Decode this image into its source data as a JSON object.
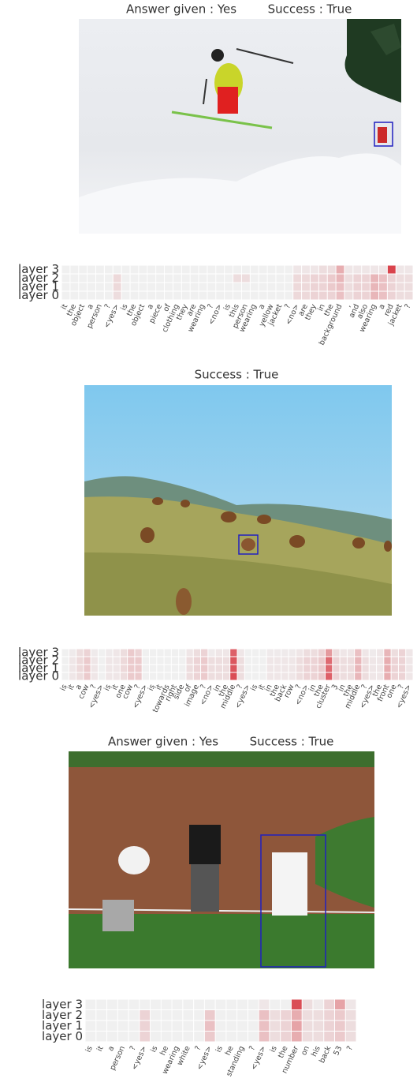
{
  "chart_data": [
    {
      "type": "heatmap",
      "titles": [
        "Answer given : Yes",
        "Success : True"
      ],
      "y_categories": [
        "layer 3",
        "layer 2",
        "layer 1",
        "layer 0"
      ],
      "x_categories": [
        "it",
        "the",
        "object",
        "a",
        "person",
        "?",
        "<yes>",
        "is",
        "the",
        "object",
        "a",
        "piece",
        "of",
        "clothing",
        "they",
        "are",
        "wearing",
        "?",
        "<no>",
        "is",
        "this",
        "person",
        "wearing",
        "a",
        "yellow",
        "jacket",
        "?",
        "<no>",
        "are",
        "they",
        "in",
        "the",
        "background",
        ",",
        "and",
        "also",
        "wearing",
        "a",
        "red",
        "jacket",
        "?"
      ],
      "colors": [
        "#f0f0f0",
        "#d6303a"
      ],
      "values": [
        [
          0,
          0,
          0,
          0,
          0,
          0,
          0,
          0,
          0,
          0,
          0,
          0,
          0,
          0,
          0,
          0,
          0,
          0,
          0,
          0,
          0,
          0,
          0,
          0,
          0,
          0,
          0,
          0.05,
          0.05,
          0.05,
          0.1,
          0.1,
          0.35,
          0.05,
          0.05,
          0.05,
          0.05,
          0.05,
          0.9,
          0.05,
          0.05
        ],
        [
          0,
          0,
          0,
          0,
          0,
          0,
          0.12,
          0,
          0,
          0,
          0,
          0,
          0,
          0,
          0,
          0,
          0,
          0,
          0,
          0,
          0.1,
          0.1,
          0,
          0,
          0,
          0,
          0,
          0.12,
          0.12,
          0.15,
          0.15,
          0.2,
          0.3,
          0.1,
          0.15,
          0.15,
          0.3,
          0.25,
          0.15,
          0.1,
          0.1
        ],
        [
          0,
          0,
          0,
          0,
          0,
          0,
          0.12,
          0,
          0,
          0,
          0,
          0,
          0,
          0,
          0,
          0,
          0,
          0,
          0,
          0,
          0,
          0,
          0,
          0,
          0,
          0,
          0,
          0.12,
          0.12,
          0.15,
          0.15,
          0.2,
          0.25,
          0.1,
          0.15,
          0.15,
          0.3,
          0.25,
          0.15,
          0.1,
          0.1
        ],
        [
          0,
          0,
          0,
          0,
          0,
          0,
          0.1,
          0,
          0,
          0,
          0,
          0,
          0,
          0,
          0,
          0,
          0,
          0,
          0,
          0,
          0,
          0,
          0,
          0,
          0,
          0,
          0,
          0.12,
          0.12,
          0.15,
          0.15,
          0.15,
          0.25,
          0.1,
          0.15,
          0.15,
          0.3,
          0.25,
          0.15,
          0.1,
          0.1
        ]
      ]
    },
    {
      "type": "heatmap",
      "titles": [
        "Success : True"
      ],
      "y_categories": [
        "layer 3",
        "layer 2",
        "layer 1",
        "layer 0"
      ],
      "x_categories": [
        "is",
        "it",
        "a",
        "cow",
        "?",
        "<yes>",
        "is",
        "it",
        "one",
        "cow",
        "?",
        "<yes>",
        "is",
        "it",
        "towards",
        "right",
        "side",
        "of",
        "image",
        "?",
        "<no>",
        "in",
        "the",
        "middle",
        "?",
        "<yes>",
        "is",
        "it",
        "in",
        "the",
        "back",
        "row",
        "?",
        "<no>",
        "in",
        "the",
        "cluster",
        "3",
        "in",
        "the",
        "middle",
        "?",
        "<yes>",
        "the",
        "front",
        "one",
        "?",
        "<yes>"
      ],
      "colors": [
        "#f0f0f0",
        "#d6303a"
      ],
      "values": [
        [
          0,
          0.03,
          0.1,
          0.15,
          0.03,
          0,
          0.03,
          0.05,
          0.1,
          0.2,
          0.15,
          0,
          0,
          0,
          0,
          0,
          0,
          0.05,
          0.1,
          0.15,
          0.03,
          0.05,
          0.05,
          0.75,
          0.05,
          0,
          0,
          0,
          0.03,
          0.03,
          0.03,
          0.03,
          0.05,
          0.1,
          0.1,
          0.15,
          0.45,
          0.1,
          0.05,
          0.05,
          0.25,
          0.05,
          0.03,
          0.05,
          0.3,
          0.1,
          0.15,
          0.05
        ],
        [
          0,
          0.05,
          0.12,
          0.2,
          0.05,
          0,
          0.05,
          0.05,
          0.12,
          0.2,
          0.2,
          0,
          0,
          0,
          0,
          0,
          0,
          0.1,
          0.15,
          0.2,
          0.1,
          0.1,
          0.1,
          0.8,
          0.1,
          0,
          0,
          0,
          0.05,
          0.05,
          0.05,
          0.05,
          0.1,
          0.15,
          0.15,
          0.2,
          0.7,
          0.15,
          0.1,
          0.1,
          0.3,
          0.1,
          0.05,
          0.05,
          0.35,
          0.15,
          0.15,
          0.05
        ],
        [
          0,
          0.05,
          0.12,
          0.2,
          0.05,
          0,
          0.05,
          0.05,
          0.12,
          0.2,
          0.2,
          0,
          0,
          0,
          0,
          0,
          0,
          0.1,
          0.15,
          0.2,
          0.1,
          0.1,
          0.1,
          0.8,
          0.1,
          0,
          0,
          0,
          0.05,
          0.05,
          0.05,
          0.05,
          0.1,
          0.15,
          0.15,
          0.2,
          0.7,
          0.15,
          0.1,
          0.1,
          0.3,
          0.1,
          0.05,
          0.05,
          0.35,
          0.15,
          0.15,
          0.05
        ],
        [
          0,
          0.05,
          0.1,
          0.2,
          0.05,
          0,
          0.05,
          0.05,
          0.1,
          0.2,
          0.2,
          0,
          0,
          0,
          0,
          0,
          0,
          0.1,
          0.15,
          0.2,
          0.1,
          0.1,
          0.1,
          0.85,
          0.1,
          0,
          0,
          0,
          0.05,
          0.05,
          0.05,
          0.05,
          0.1,
          0.15,
          0.15,
          0.2,
          0.75,
          0.15,
          0.1,
          0.1,
          0.3,
          0.1,
          0.05,
          0.05,
          0.35,
          0.15,
          0.15,
          0.05
        ]
      ]
    },
    {
      "type": "heatmap",
      "titles": [
        "Answer given : Yes",
        "Success : True"
      ],
      "y_categories": [
        "layer 3",
        "layer 2",
        "layer 1",
        "layer 0"
      ],
      "x_categories": [
        "is",
        "it",
        "a",
        "person",
        "?",
        "<yes>",
        "is",
        "he",
        "wearing",
        "white",
        "?",
        "<yes>",
        "is",
        "he",
        "standing",
        "?",
        "<yes>",
        "is",
        "the",
        "number",
        "on",
        "his",
        "back",
        "53",
        "?"
      ],
      "colors": [
        "#f0f0f0",
        "#d6303a"
      ],
      "values": [
        [
          0,
          0,
          0,
          0,
          0,
          0,
          0,
          0,
          0,
          0,
          0,
          0,
          0,
          0,
          0,
          0,
          0.05,
          0,
          0,
          0.85,
          0.1,
          0.03,
          0.15,
          0.4,
          0.05
        ],
        [
          0,
          0,
          0,
          0,
          0,
          0.15,
          0,
          0,
          0,
          0,
          0,
          0.2,
          0,
          0,
          0,
          0,
          0.25,
          0.1,
          0.15,
          0.35,
          0.1,
          0.1,
          0.15,
          0.2,
          0.1
        ],
        [
          0,
          0,
          0,
          0,
          0,
          0.15,
          0,
          0,
          0,
          0,
          0,
          0.25,
          0,
          0,
          0,
          0,
          0.25,
          0.1,
          0.15,
          0.4,
          0.1,
          0.1,
          0.15,
          0.2,
          0.1
        ],
        [
          0,
          0,
          0,
          0,
          0,
          0.15,
          0,
          0,
          0,
          0,
          0,
          0.2,
          0,
          0,
          0,
          0,
          0.25,
          0.1,
          0.15,
          0.35,
          0.1,
          0.1,
          0.15,
          0.2,
          0.1
        ]
      ]
    }
  ]
}
